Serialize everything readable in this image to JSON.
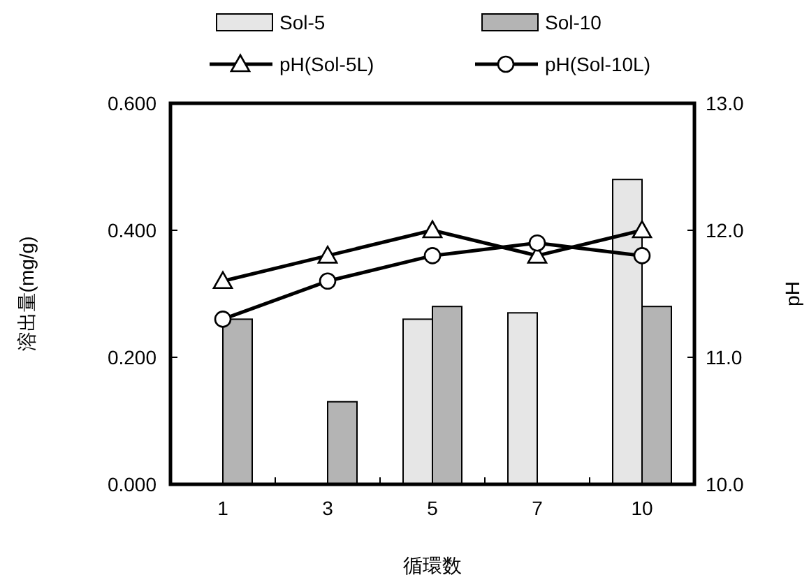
{
  "chart_data": {
    "type": "bar",
    "xlabel": "循環数",
    "ylabel": "溶出量(mg/g)",
    "y2label": "pH",
    "categories": [
      "1",
      "3",
      "5",
      "7",
      "10"
    ],
    "series": [
      {
        "name": "Sol-5",
        "color": "#e6e6e6",
        "values": [
          null,
          null,
          0.26,
          0.27,
          0.48
        ]
      },
      {
        "name": "Sol-10",
        "color": "#b4b4b4",
        "values": [
          0.26,
          0.13,
          0.28,
          null,
          0.28
        ]
      },
      {
        "name": "pH(Sol-5L)",
        "type": "line",
        "axis": "y2",
        "marker": "triangle",
        "color": "#000000",
        "values": [
          11.6,
          11.8,
          12.0,
          11.8,
          12.0
        ]
      },
      {
        "name": "pH(Sol-10L)",
        "type": "line",
        "axis": "y2",
        "marker": "circle",
        "color": "#000000",
        "values": [
          11.3,
          11.6,
          11.8,
          11.9,
          11.8
        ]
      }
    ],
    "ylim": [
      0,
      0.6
    ],
    "yticks": [
      {
        "value": 0,
        "label": "0.000"
      },
      {
        "value": 0.2,
        "label": "0.200"
      },
      {
        "value": 0.4,
        "label": "0.400"
      },
      {
        "value": 0.6,
        "label": "0.600"
      }
    ],
    "y2lim": [
      10,
      13
    ],
    "y2ticks": [
      {
        "value": 10,
        "label": "10.0"
      },
      {
        "value": 11,
        "label": "11.0"
      },
      {
        "value": 12,
        "label": "12.0"
      },
      {
        "value": 13,
        "label": "13.0"
      }
    ],
    "legend": "top",
    "grid": false
  }
}
